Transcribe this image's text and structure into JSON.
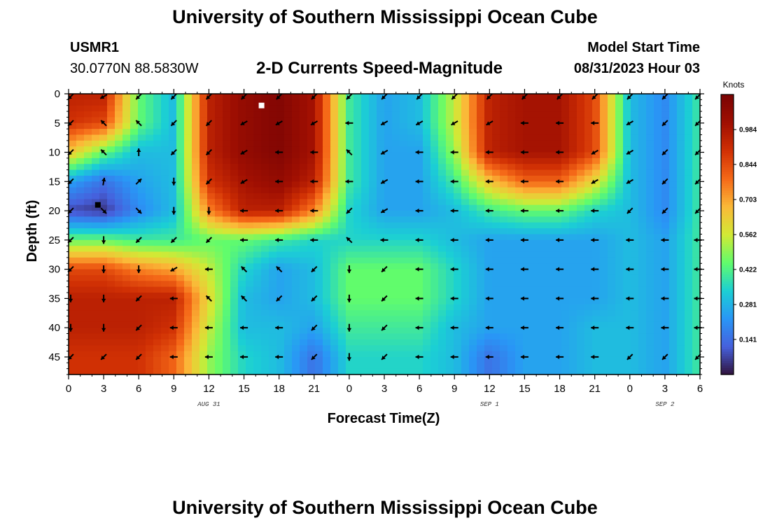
{
  "header": {
    "title": "University of Southern Mississippi Ocean Cube",
    "station_id": "USMR1",
    "station_coords": "30.0770N  88.5830W",
    "plot_title": "2-D Currents Speed-Magnitude",
    "model_start_label": "Model Start Time",
    "model_start_value": "08/31/2023 Hour 03"
  },
  "footer": {
    "title": "University of Southern Mississippi Ocean Cube"
  },
  "chart_data": {
    "type": "heatmap",
    "title": "2-D Currents Speed-Magnitude",
    "xlabel": "Forecast Time(Z)",
    "ylabel": "Depth (ft)",
    "x_tick_labels": [
      "0",
      "3",
      "6",
      "9",
      "12",
      "15",
      "18",
      "21",
      "0",
      "3",
      "6",
      "9",
      "12",
      "15",
      "18",
      "21",
      "0",
      "3",
      "6"
    ],
    "x_range_hours": [
      0,
      54
    ],
    "y_ticks": [
      0,
      5,
      10,
      15,
      20,
      25,
      30,
      35,
      40,
      45
    ],
    "y_range_ft": [
      0,
      48
    ],
    "y_reversed": true,
    "date_labels": [
      {
        "label": "AUG 31",
        "hour": 12
      },
      {
        "label": "SEP 1",
        "hour": 36
      },
      {
        "label": "SEP 2",
        "hour": 51
      }
    ],
    "colorbar": {
      "unit": "Knots",
      "ticks": [
        "0.984",
        "0.844",
        "0.703",
        "0.562",
        "0.422",
        "0.281",
        "0.141"
      ],
      "tick_values": [
        0.984,
        0.844,
        0.703,
        0.562,
        0.422,
        0.281,
        0.141
      ],
      "range": [
        0.0,
        1.125
      ]
    },
    "speed_knots_by_depth": {
      "depths_ft": [
        0,
        5,
        10,
        15,
        20,
        25,
        30,
        35,
        40,
        45
      ],
      "hours": [
        0,
        3,
        6,
        9,
        12,
        15,
        18,
        21,
        24,
        27,
        30,
        33,
        36,
        39,
        42,
        45,
        48,
        51,
        54
      ],
      "values": [
        [
          0.95,
          0.95,
          0.45,
          0.3,
          0.95,
          1.05,
          1.1,
          1.0,
          0.4,
          0.25,
          0.3,
          0.55,
          0.95,
          1.0,
          1.0,
          0.85,
          0.3,
          0.2,
          0.4
        ],
        [
          0.9,
          0.85,
          0.45,
          0.3,
          0.95,
          1.05,
          1.1,
          1.0,
          0.4,
          0.25,
          0.3,
          0.55,
          0.95,
          1.0,
          1.0,
          0.85,
          0.3,
          0.2,
          0.4
        ],
        [
          0.65,
          0.45,
          0.3,
          0.3,
          0.95,
          1.05,
          1.1,
          1.0,
          0.4,
          0.25,
          0.25,
          0.5,
          0.95,
          1.0,
          1.0,
          0.85,
          0.3,
          0.2,
          0.4
        ],
        [
          0.25,
          0.15,
          0.25,
          0.3,
          0.9,
          1.0,
          1.05,
          0.95,
          0.4,
          0.25,
          0.25,
          0.4,
          0.65,
          0.8,
          0.8,
          0.6,
          0.3,
          0.2,
          0.4
        ],
        [
          0.08,
          0.05,
          0.2,
          0.3,
          0.75,
          0.95,
          0.95,
          0.75,
          0.35,
          0.25,
          0.25,
          0.3,
          0.4,
          0.45,
          0.45,
          0.35,
          0.3,
          0.2,
          0.4
        ],
        [
          0.45,
          0.45,
          0.4,
          0.4,
          0.45,
          0.45,
          0.4,
          0.35,
          0.35,
          0.35,
          0.35,
          0.3,
          0.25,
          0.25,
          0.25,
          0.25,
          0.3,
          0.25,
          0.4
        ],
        [
          0.85,
          0.85,
          0.75,
          0.7,
          0.55,
          0.35,
          0.25,
          0.3,
          0.45,
          0.45,
          0.45,
          0.35,
          0.25,
          0.25,
          0.25,
          0.25,
          0.3,
          0.25,
          0.4
        ],
        [
          0.95,
          0.95,
          0.95,
          0.95,
          0.6,
          0.3,
          0.25,
          0.3,
          0.45,
          0.45,
          0.45,
          0.35,
          0.25,
          0.25,
          0.25,
          0.25,
          0.3,
          0.25,
          0.4
        ],
        [
          0.95,
          0.95,
          0.95,
          0.9,
          0.55,
          0.3,
          0.3,
          0.25,
          0.4,
          0.4,
          0.4,
          0.3,
          0.25,
          0.25,
          0.25,
          0.3,
          0.3,
          0.25,
          0.4
        ],
        [
          0.9,
          0.9,
          0.9,
          0.8,
          0.5,
          0.35,
          0.3,
          0.15,
          0.35,
          0.35,
          0.35,
          0.3,
          0.15,
          0.25,
          0.25,
          0.3,
          0.3,
          0.25,
          0.4
        ]
      ]
    },
    "current_direction_deg": {
      "note": "arrow direction (math angle, 0=east, 90=north) at each depth row / forecast hour",
      "values": [
        [
          225,
          210,
          225,
          225,
          225,
          225,
          225,
          225,
          225,
          225,
          225,
          225,
          225,
          225,
          225,
          225,
          225,
          225,
          225
        ],
        [
          225,
          135,
          135,
          225,
          225,
          210,
          210,
          210,
          180,
          210,
          210,
          210,
          210,
          180,
          180,
          180,
          210,
          225,
          225
        ],
        [
          225,
          135,
          90,
          225,
          225,
          210,
          180,
          180,
          135,
          210,
          180,
          180,
          180,
          180,
          180,
          210,
          210,
          225,
          225
        ],
        [
          225,
          80,
          45,
          270,
          225,
          210,
          180,
          180,
          180,
          210,
          180,
          180,
          180,
          180,
          180,
          210,
          210,
          225,
          225
        ],
        [
          225,
          315,
          315,
          270,
          270,
          180,
          180,
          180,
          225,
          210,
          180,
          180,
          180,
          180,
          180,
          180,
          225,
          225,
          225
        ],
        [
          225,
          270,
          225,
          225,
          225,
          180,
          180,
          180,
          135,
          180,
          180,
          180,
          180,
          180,
          180,
          180,
          180,
          180,
          180
        ],
        [
          225,
          270,
          270,
          210,
          180,
          135,
          135,
          225,
          270,
          225,
          180,
          180,
          180,
          180,
          180,
          180,
          180,
          180,
          180
        ],
        [
          270,
          270,
          225,
          180,
          135,
          135,
          225,
          225,
          270,
          225,
          180,
          180,
          180,
          180,
          180,
          180,
          180,
          180,
          180
        ],
        [
          270,
          270,
          225,
          180,
          180,
          180,
          180,
          225,
          270,
          225,
          180,
          180,
          180,
          180,
          180,
          180,
          180,
          180,
          180
        ],
        [
          225,
          225,
          225,
          180,
          180,
          180,
          180,
          225,
          270,
          225,
          180,
          180,
          180,
          180,
          180,
          180,
          225,
          225,
          225
        ]
      ]
    },
    "markers": [
      {
        "name": "white-square",
        "hour": 16.5,
        "depth_ft": 2
      },
      {
        "name": "black-square",
        "hour": 2.5,
        "depth_ft": 19
      }
    ]
  }
}
